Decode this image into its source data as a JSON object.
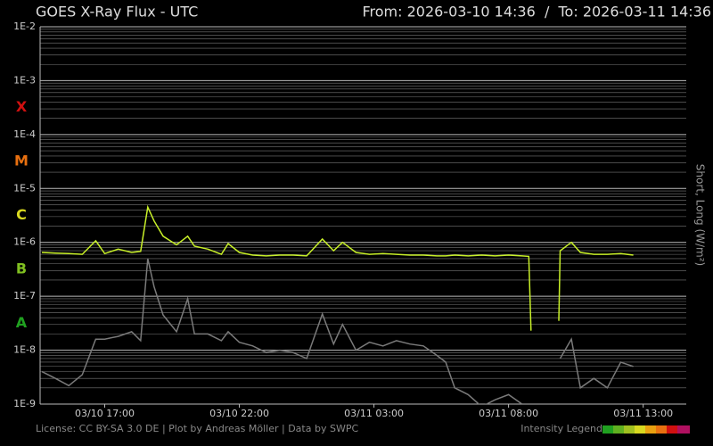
{
  "chart_data": {
    "type": "line",
    "title": "GOES X-Ray Flux - UTC",
    "subtitle": "From: 2026-03-10 14:36  /  To: 2026-03-11 14:36",
    "y_label": "Short, Long (W/m²)",
    "footer": "License: CC BY-SA 3.0 DE | Plot by Andreas Möller | Data by SWPC",
    "legend_label": "Intensity Legend",
    "log_scale": true,
    "grid": true,
    "minor_grid": true,
    "xlim": [
      "03/10 14:36",
      "03/11 14:36"
    ],
    "xticks": [
      "03/10 17:00",
      "03/10 22:00",
      "03/11 03:00",
      "03/11 08:00",
      "03/11 13:00"
    ],
    "ylim": [
      1e-09,
      0.01
    ],
    "yticks": [
      {
        "value": 1e-09,
        "label": "1E-9"
      },
      {
        "value": 1e-08,
        "label": "1E-8"
      },
      {
        "value": 1e-07,
        "label": "1E-7"
      },
      {
        "value": 1e-06,
        "label": "1E-6"
      },
      {
        "value": 1e-05,
        "label": "1E-5"
      },
      {
        "value": 0.0001,
        "label": "1E-4"
      },
      {
        "value": 0.001,
        "label": "1E-3"
      },
      {
        "value": 0.01,
        "label": "1E-2"
      }
    ],
    "flare_classes": [
      {
        "label": "X",
        "value": 0.0001,
        "color": "#d01010"
      },
      {
        "label": "M",
        "value": 1e-05,
        "color": "#e87010"
      },
      {
        "label": "C",
        "value": 1e-06,
        "color": "#d8d820"
      },
      {
        "label": "B",
        "value": 1e-07,
        "color": "#80c020"
      },
      {
        "label": "A",
        "value": 1e-08,
        "color": "#20a020"
      }
    ],
    "x": [
      "03/10 14:40",
      "03/10 15:10",
      "03/10 15:40",
      "03/10 16:10",
      "03/10 16:40",
      "03/10 17:00",
      "03/10 17:30",
      "03/10 18:00",
      "03/10 18:20",
      "03/10 18:36",
      "03/10 18:50",
      "03/10 19:10",
      "03/10 19:40",
      "03/10 20:05",
      "03/10 20:20",
      "03/10 20:50",
      "03/10 21:20",
      "03/10 21:35",
      "03/10 22:00",
      "03/10 22:30",
      "03/10 23:00",
      "03/10 23:30",
      "03/11 00:00",
      "03/11 00:30",
      "03/11 01:05",
      "03/11 01:30",
      "03/11 01:50",
      "03/11 02:20",
      "03/11 02:50",
      "03/11 03:20",
      "03/11 03:50",
      "03/11 04:20",
      "03/11 04:50",
      "03/11 05:20",
      "03/11 05:40",
      "03/11 06:00",
      "03/11 06:30",
      "03/11 07:00",
      "03/11 07:30",
      "03/11 08:00",
      "03/11 08:30",
      "03/11 08:45",
      "03/11 08:50",
      "03/11 09:20",
      "03/11 09:52",
      "03/11 09:55",
      "03/11 10:20",
      "03/11 10:40",
      "03/11 11:10",
      "03/11 11:40",
      "03/11 12:10",
      "03/11 12:38"
    ],
    "series": [
      {
        "color": "#c8f028",
        "values": [
          6.5e-07,
          6.3e-07,
          6.2e-07,
          6e-07,
          1.07e-06,
          6.2e-07,
          7.5e-07,
          6.5e-07,
          6.8e-07,
          4.5e-06,
          2.5e-06,
          1.3e-06,
          9e-07,
          1.3e-06,
          8.5e-07,
          7.5e-07,
          6e-07,
          9.5e-07,
          6.5e-07,
          5.8e-07,
          5.6e-07,
          5.8e-07,
          5.8e-07,
          5.6e-07,
          1.15e-06,
          7e-07,
          1e-06,
          6.5e-07,
          6e-07,
          6.2e-07,
          6e-07,
          5.8e-07,
          5.8e-07,
          5.6e-07,
          5.6e-07,
          5.8e-07,
          5.6e-07,
          5.8e-07,
          5.6e-07,
          5.8e-07,
          5.6e-07,
          5.5e-07,
          2.3e-08,
          null,
          3.5e-08,
          7e-07,
          1e-06,
          6.5e-07,
          6e-07,
          6e-07,
          6.2e-07,
          5.8e-07
        ]
      },
      {
        "color": "#7a7a7a",
        "values": [
          4e-09,
          3e-09,
          2.2e-09,
          3.5e-09,
          1.6e-08,
          1.6e-08,
          1.8e-08,
          2.2e-08,
          1.5e-08,
          5e-07,
          1.5e-07,
          4.5e-08,
          2.2e-08,
          9e-08,
          2e-08,
          2e-08,
          1.5e-08,
          2.2e-08,
          1.4e-08,
          1.2e-08,
          9e-09,
          1e-08,
          9e-09,
          7e-09,
          4.7e-08,
          1.3e-08,
          3e-08,
          1e-08,
          1.4e-08,
          1.2e-08,
          1.5e-08,
          1.3e-08,
          1.2e-08,
          8e-09,
          6e-09,
          2e-09,
          1.5e-09,
          9e-10,
          1.2e-09,
          1.5e-09,
          1e-09,
          null,
          null,
          null,
          null,
          7e-09,
          1.6e-08,
          2e-09,
          3e-09,
          2e-09,
          6e-09,
          5e-09
        ]
      }
    ]
  }
}
